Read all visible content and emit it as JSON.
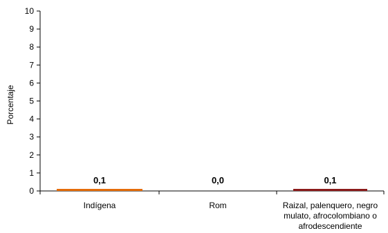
{
  "chart_data": {
    "type": "bar",
    "title": "",
    "xlabel": "",
    "ylabel": "Porcentaje",
    "ylim": [
      0,
      10
    ],
    "yticks": [
      0,
      1,
      2,
      3,
      4,
      5,
      6,
      7,
      8,
      9,
      10
    ],
    "grid": false,
    "categories": [
      [
        "Indígena"
      ],
      [
        "Rom"
      ],
      [
        "Raizal, palenquero, negro",
        "mulato, afrocolombiano o",
        "afrodescendiente"
      ]
    ],
    "values": [
      0.1,
      0.0,
      0.1
    ],
    "data_labels": [
      "0,1",
      "0,0",
      "0,1"
    ],
    "colors": [
      "#E46C0A",
      "#7030A0",
      "#8B1A1A"
    ]
  }
}
